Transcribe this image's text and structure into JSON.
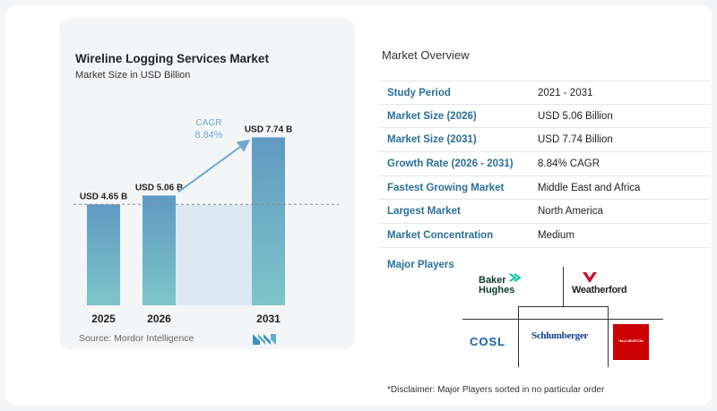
{
  "chart_data": {
    "type": "bar",
    "title": "Wireline Logging Services Market",
    "subtitle": "Market Size in USD Billion",
    "categories": [
      "2025",
      "2026",
      "2031"
    ],
    "values": [
      4.65,
      5.06,
      7.74
    ],
    "value_labels": [
      "USD 4.65 B",
      "USD 5.06 B",
      "USD 7.74 B"
    ],
    "cagr_label": "CAGR",
    "cagr_value": "8.84%",
    "ylim": [
      0,
      8.5
    ],
    "grid": false,
    "legend": "none",
    "colors": {
      "bar_top": "#5f9ac3",
      "bar_bottom": "#7ec5c9",
      "arrow": "#6ea7cf",
      "dashed": "#888888"
    }
  },
  "source": {
    "text": "Source:  Mordor Intelligence"
  },
  "overview": {
    "title": "Market Overview",
    "rows": [
      {
        "label": "Study Period",
        "value": "2021 - 2031"
      },
      {
        "label": "Market Size (2026)",
        "value": "USD 5.06 Billion"
      },
      {
        "label": "Market Size (2031)",
        "value": "USD 7.74 Billion"
      },
      {
        "label": "Growth Rate (2026 - 2031)",
        "value": "8.84% CAGR"
      },
      {
        "label": "Fastest Growing Market",
        "value": "Middle East and Africa"
      },
      {
        "label": "Largest Market",
        "value": "North America"
      },
      {
        "label": "Market Concentration",
        "value": "Medium"
      }
    ]
  },
  "players": {
    "title": "Major Players",
    "baker_hughes_line1": "Baker",
    "baker_hughes_line2": "Hughes",
    "weatherford": "Weatherford",
    "cosl": "COSL",
    "schlumberger": "Schlumberger",
    "halliburton": "HALLIBURTON"
  },
  "disclaimer": "*Disclaimer: Major Players sorted in no particular order"
}
